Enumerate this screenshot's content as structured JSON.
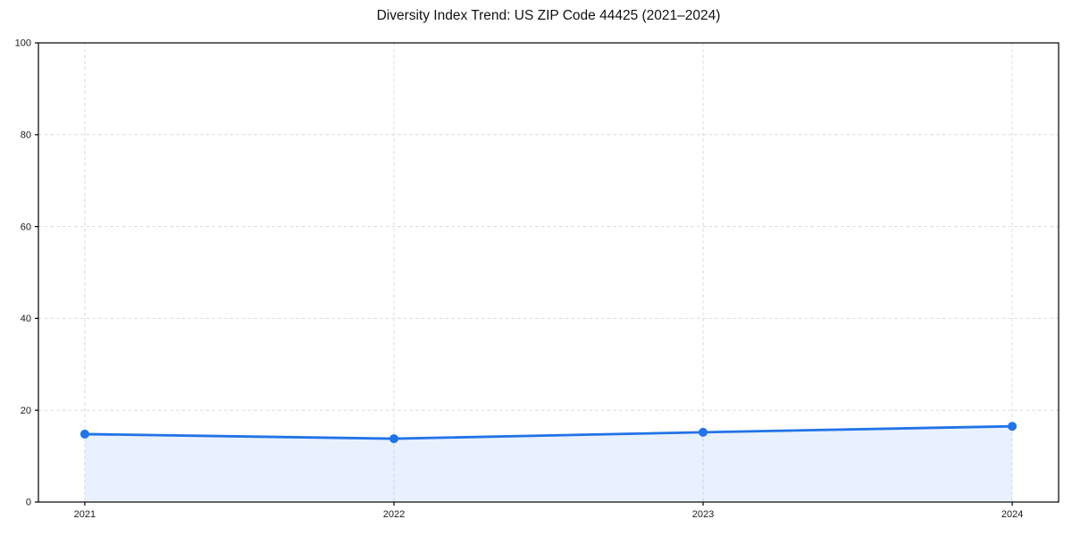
{
  "chart_data": {
    "type": "area",
    "title": "Diversity Index Trend: US ZIP Code 44425 (2021–2024)",
    "x": [
      2021,
      2022,
      2023,
      2024
    ],
    "categories": [
      "2021",
      "2022",
      "2023",
      "2024"
    ],
    "series": [
      {
        "name": "Diversity Index",
        "values": [
          14.8,
          13.8,
          15.2,
          16.5
        ]
      }
    ],
    "xlabel": "",
    "ylabel": "",
    "ylim": [
      0,
      100
    ],
    "yticks": [
      0,
      20,
      40,
      60,
      80,
      100
    ],
    "grid": "dashed",
    "legend_position": "none",
    "colors": {
      "line": "#2273e8",
      "marker": "#2273e8",
      "fill": "#2273e8",
      "fill_opacity": "0.1",
      "grid": "#dcdcdc",
      "spine": "#000000",
      "tick_text": "#1a1a1a",
      "title_text": "#111111",
      "background": "#ffffff"
    }
  }
}
